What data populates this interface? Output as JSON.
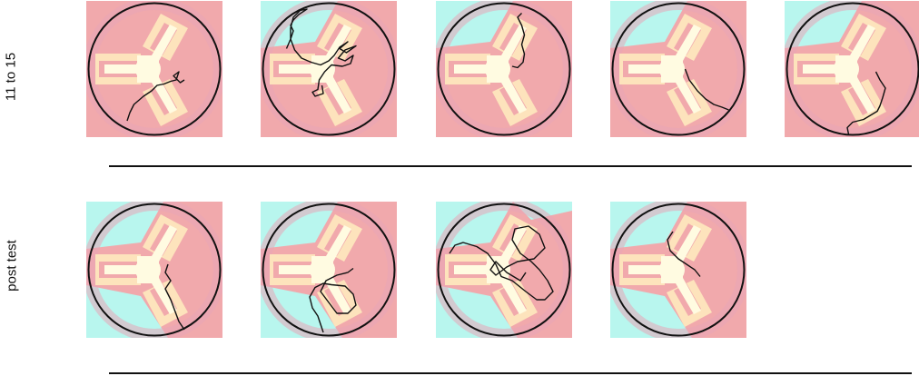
{
  "rows": [
    {
      "label": "11 to 15",
      "panels": [
        {
          "top": "arena-pink",
          "bottom": "arena-pink",
          "path": [
            [
              0.3,
              0.88
            ],
            [
              0.32,
              0.82
            ],
            [
              0.35,
              0.76
            ],
            [
              0.42,
              0.7
            ],
            [
              0.48,
              0.66
            ],
            [
              0.52,
              0.62
            ],
            [
              0.57,
              0.61
            ],
            [
              0.62,
              0.59
            ],
            [
              0.66,
              0.58
            ],
            [
              0.68,
              0.52
            ],
            [
              0.64,
              0.55
            ],
            [
              0.69,
              0.6
            ],
            [
              0.72,
              0.58
            ]
          ]
        },
        {
          "top": "arena-cyan-tl",
          "bottom": "arena-pink",
          "path": [
            [
              0.19,
              0.35
            ],
            [
              0.22,
              0.28
            ],
            [
              0.24,
              0.22
            ],
            [
              0.22,
              0.18
            ],
            [
              0.24,
              0.14
            ],
            [
              0.28,
              0.1
            ],
            [
              0.31,
              0.08
            ],
            [
              0.34,
              0.06
            ],
            [
              0.29,
              0.07
            ],
            [
              0.24,
              0.12
            ],
            [
              0.22,
              0.2
            ],
            [
              0.22,
              0.28
            ],
            [
              0.25,
              0.36
            ],
            [
              0.3,
              0.42
            ],
            [
              0.37,
              0.45
            ],
            [
              0.44,
              0.47
            ],
            [
              0.5,
              0.44
            ],
            [
              0.54,
              0.4
            ],
            [
              0.58,
              0.34
            ],
            [
              0.64,
              0.3
            ],
            [
              0.58,
              0.35
            ],
            [
              0.63,
              0.38
            ],
            [
              0.7,
              0.33
            ],
            [
              0.62,
              0.36
            ],
            [
              0.57,
              0.42
            ],
            [
              0.62,
              0.44
            ],
            [
              0.68,
              0.4
            ],
            [
              0.66,
              0.46
            ],
            [
              0.6,
              0.48
            ],
            [
              0.52,
              0.47
            ],
            [
              0.47,
              0.52
            ],
            [
              0.43,
              0.58
            ],
            [
              0.42,
              0.65
            ],
            [
              0.38,
              0.67
            ],
            [
              0.4,
              0.7
            ],
            [
              0.46,
              0.68
            ],
            [
              0.45,
              0.62
            ]
          ]
        },
        {
          "top": "arena-cyan-tl",
          "bottom": "arena-pink",
          "path": [
            [
              0.63,
              0.09
            ],
            [
              0.6,
              0.12
            ],
            [
              0.63,
              0.18
            ],
            [
              0.65,
              0.25
            ],
            [
              0.63,
              0.32
            ],
            [
              0.65,
              0.39
            ],
            [
              0.64,
              0.45
            ],
            [
              0.6,
              0.49
            ],
            [
              0.56,
              0.48
            ]
          ]
        },
        {
          "top": "arena-cyan-tl",
          "bottom": "arena-pink",
          "path": [
            [
              0.55,
              0.5
            ],
            [
              0.58,
              0.58
            ],
            [
              0.64,
              0.66
            ],
            [
              0.7,
              0.72
            ],
            [
              0.76,
              0.76
            ],
            [
              0.82,
              0.78
            ],
            [
              0.87,
              0.8
            ]
          ]
        },
        {
          "top": "arena-cyan-tl",
          "bottom": "arena-pink",
          "path": [
            [
              0.47,
              0.98
            ],
            [
              0.46,
              0.93
            ],
            [
              0.5,
              0.89
            ],
            [
              0.58,
              0.87
            ],
            [
              0.63,
              0.84
            ],
            [
              0.68,
              0.81
            ],
            [
              0.7,
              0.77
            ],
            [
              0.72,
              0.71
            ],
            [
              0.74,
              0.64
            ],
            [
              0.7,
              0.58
            ],
            [
              0.67,
              0.52
            ]
          ]
        }
      ]
    },
    {
      "label": "post test",
      "panels": [
        {
          "top": "arena-cyan-tl",
          "bottom": "arena-cyan-bl",
          "path": [
            [
              0.6,
              0.46
            ],
            [
              0.58,
              0.52
            ],
            [
              0.62,
              0.58
            ],
            [
              0.58,
              0.64
            ],
            [
              0.62,
              0.72
            ],
            [
              0.65,
              0.8
            ],
            [
              0.68,
              0.88
            ],
            [
              0.72,
              0.94
            ]
          ]
        },
        {
          "top": "arena-cyan-tl",
          "bottom": "arena-cyan-bl",
          "path": [
            [
              0.46,
              0.96
            ],
            [
              0.44,
              0.9
            ],
            [
              0.42,
              0.84
            ],
            [
              0.38,
              0.78
            ],
            [
              0.36,
              0.7
            ],
            [
              0.4,
              0.63
            ],
            [
              0.46,
              0.6
            ],
            [
              0.52,
              0.61
            ],
            [
              0.62,
              0.62
            ],
            [
              0.68,
              0.68
            ],
            [
              0.7,
              0.76
            ],
            [
              0.64,
              0.82
            ],
            [
              0.56,
              0.82
            ],
            [
              0.5,
              0.74
            ],
            [
              0.44,
              0.66
            ],
            [
              0.48,
              0.58
            ],
            [
              0.56,
              0.54
            ],
            [
              0.64,
              0.52
            ],
            [
              0.68,
              0.49
            ]
          ]
        },
        {
          "top": "arena-cyan-full",
          "bottom": "arena-cyan-full",
          "path": [
            [
              0.1,
              0.38
            ],
            [
              0.14,
              0.32
            ],
            [
              0.2,
              0.3
            ],
            [
              0.3,
              0.33
            ],
            [
              0.38,
              0.38
            ],
            [
              0.44,
              0.46
            ],
            [
              0.48,
              0.55
            ],
            [
              0.56,
              0.58
            ],
            [
              0.66,
              0.66
            ],
            [
              0.74,
              0.72
            ],
            [
              0.8,
              0.72
            ],
            [
              0.86,
              0.66
            ],
            [
              0.82,
              0.58
            ],
            [
              0.76,
              0.5
            ],
            [
              0.7,
              0.44
            ],
            [
              0.62,
              0.38
            ],
            [
              0.56,
              0.28
            ],
            [
              0.58,
              0.2
            ],
            [
              0.68,
              0.18
            ],
            [
              0.76,
              0.24
            ],
            [
              0.8,
              0.34
            ],
            [
              0.72,
              0.42
            ],
            [
              0.6,
              0.44
            ],
            [
              0.52,
              0.48
            ],
            [
              0.44,
              0.54
            ],
            [
              0.4,
              0.5
            ],
            [
              0.44,
              0.44
            ],
            [
              0.52,
              0.52
            ],
            [
              0.62,
              0.58
            ],
            [
              0.66,
              0.52
            ]
          ]
        },
        {
          "top": "arena-cyan-tl",
          "bottom": "arena-cyan-bl",
          "path": [
            [
              0.46,
              0.22
            ],
            [
              0.42,
              0.28
            ],
            [
              0.44,
              0.36
            ],
            [
              0.5,
              0.42
            ],
            [
              0.56,
              0.46
            ],
            [
              0.62,
              0.5
            ],
            [
              0.66,
              0.55
            ]
          ]
        }
      ]
    }
  ]
}
